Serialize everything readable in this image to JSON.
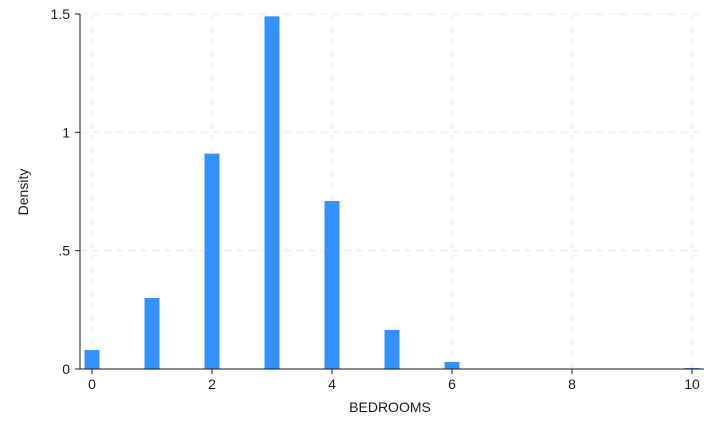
{
  "chart_data": {
    "type": "bar",
    "title": "",
    "xlabel": "BEDROOMS",
    "ylabel": "Density",
    "xlim": [
      -0.2,
      10.2
    ],
    "ylim": [
      0,
      1.5
    ],
    "bar_width": 0.25,
    "grid": true,
    "bar_color": "#3592fd",
    "x_ticks": [
      {
        "value": 0,
        "label": "0"
      },
      {
        "value": 2,
        "label": "2"
      },
      {
        "value": 4,
        "label": "4"
      },
      {
        "value": 6,
        "label": "6"
      },
      {
        "value": 8,
        "label": "8"
      },
      {
        "value": 10,
        "label": "10"
      }
    ],
    "y_ticks": [
      {
        "value": 0,
        "label": "0"
      },
      {
        "value": 0.5,
        "label": ".5"
      },
      {
        "value": 1,
        "label": "1"
      },
      {
        "value": 1.5,
        "label": "1.5"
      }
    ],
    "bars": [
      {
        "x": 0,
        "y": 0.08
      },
      {
        "x": 1,
        "y": 0.3
      },
      {
        "x": 2,
        "y": 0.91
      },
      {
        "x": 3,
        "y": 1.49
      },
      {
        "x": 4,
        "y": 0.71
      },
      {
        "x": 5,
        "y": 0.165
      },
      {
        "x": 6,
        "y": 0.03
      },
      {
        "x": 10,
        "y": 0.004
      }
    ]
  }
}
